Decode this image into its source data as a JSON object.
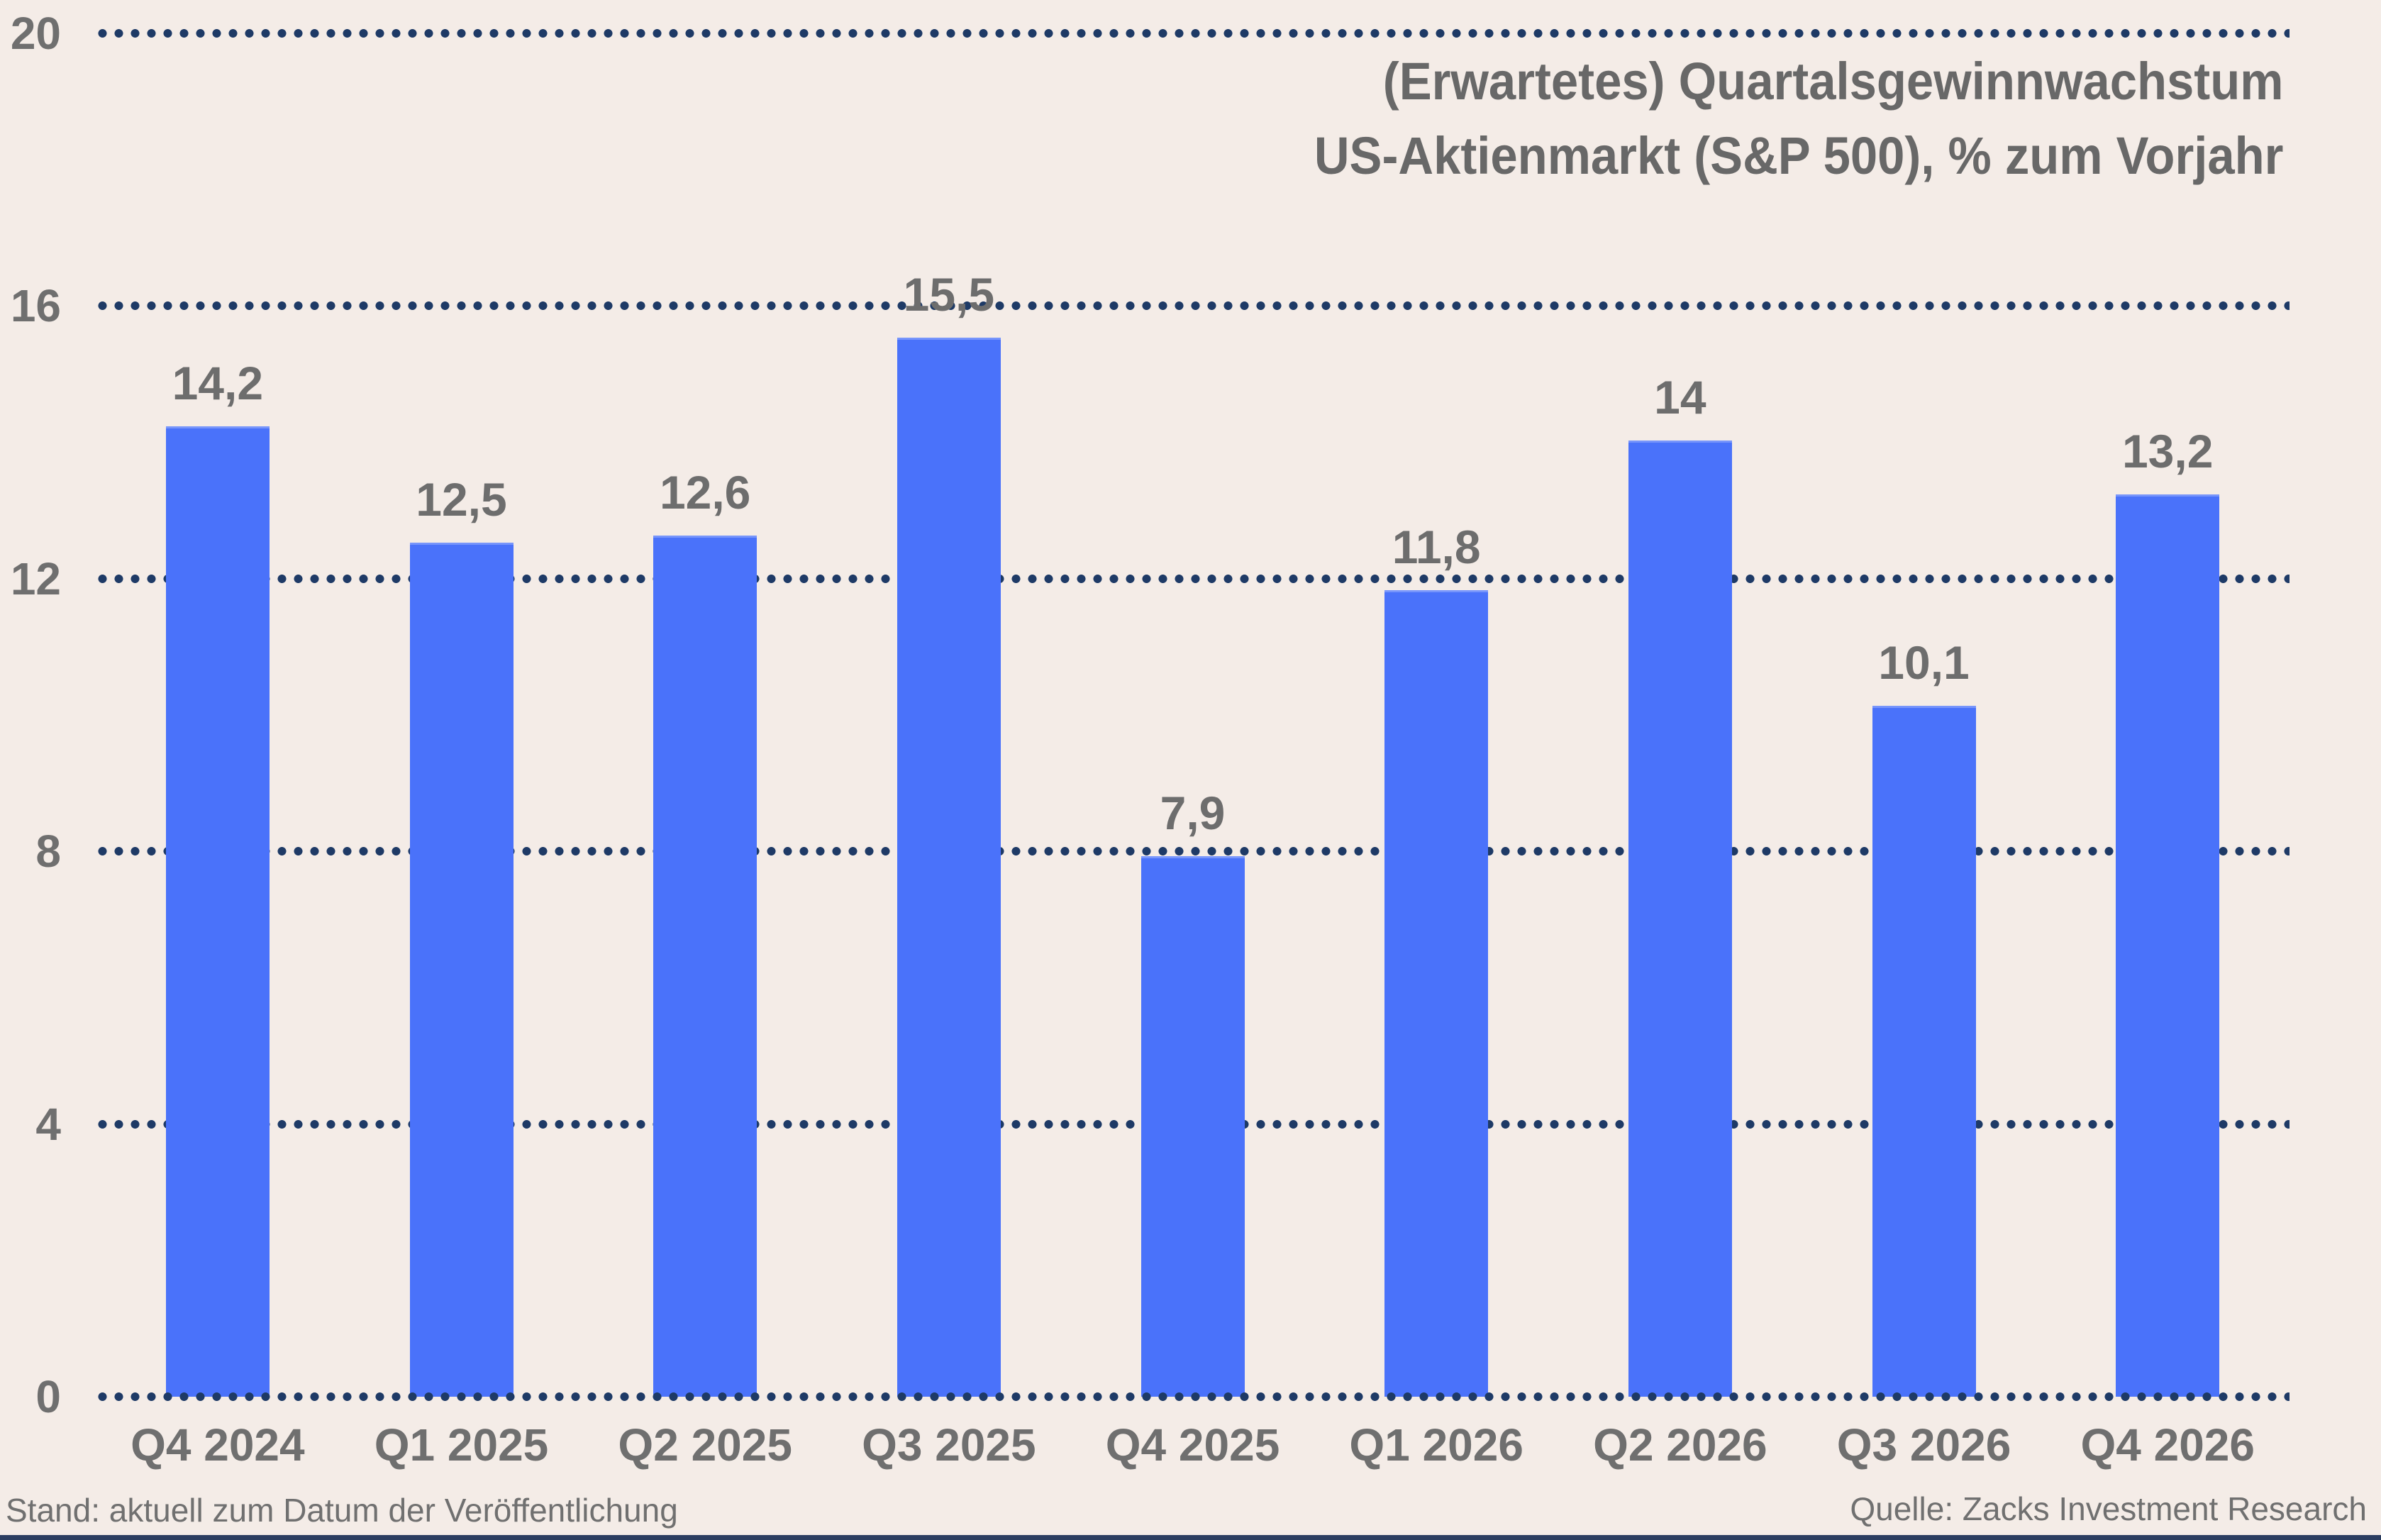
{
  "chart_data": {
    "type": "bar",
    "title_lines": [
      "(Erwartetes) Quartalsgewinnwachstum",
      "US-Aktienmarkt (S&P 500), % zum Vorjahr"
    ],
    "categories": [
      "Q4 2024",
      "Q1 2025",
      "Q2 2025",
      "Q3 2025",
      "Q4 2025",
      "Q1 2026",
      "Q2 2026",
      "Q3 2026",
      "Q4 2026"
    ],
    "values": [
      14.2,
      12.5,
      12.6,
      15.5,
      7.9,
      11.8,
      14,
      10.1,
      13.2
    ],
    "value_labels": [
      "14,2",
      "12,5",
      "12,6",
      "15,5",
      "7,9",
      "11,8",
      "14",
      "10,1",
      "13,2"
    ],
    "yticks": [
      0,
      4,
      8,
      12,
      16,
      20
    ],
    "ytick_labels": [
      "0",
      "4",
      "8",
      "12",
      "16",
      "20"
    ],
    "ylim": [
      0,
      20
    ],
    "xlabel": "",
    "ylabel": "",
    "grid": "horizontal-dotted",
    "legend": "none"
  },
  "footer": {
    "left": "Stand: aktuell zum Datum der Veröffentlichung",
    "right": "Quelle: Zacks Investment Research"
  },
  "colors": {
    "background": "#f4ece7",
    "bar": "#4a72fa",
    "grid_dots": "#1e3a66",
    "title_text": "#686868",
    "label_text": "#6f6f6f",
    "footer_text": "#707070",
    "bottom_rule": "#2b3d60"
  }
}
